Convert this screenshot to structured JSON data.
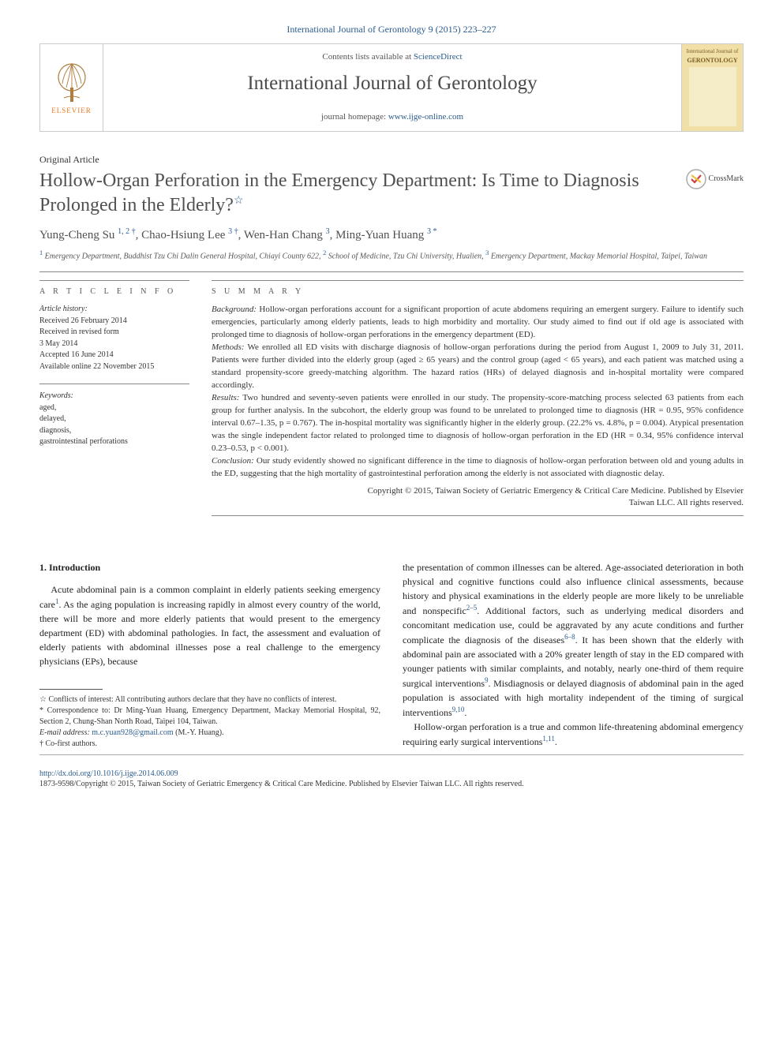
{
  "header": {
    "citation": "International Journal of Gerontology 9 (2015) 223–227",
    "contents_prefix": "Contents lists available at ",
    "contents_link": "ScienceDirect",
    "journal_name": "International Journal of Gerontology",
    "homepage_prefix": "journal homepage: ",
    "homepage_link": "www.ijge-online.com",
    "elsevier_label": "ELSEVIER",
    "cover_line1": "International Journal of",
    "cover_line2": "GERONTOLOGY"
  },
  "article": {
    "type": "Original Article",
    "title": "Hollow-Organ Perforation in the Emergency Department: Is Time to Diagnosis Prolonged in the Elderly?",
    "title_mark": "☆",
    "crossmark_label": "CrossMark",
    "authors_html": "Yung-Cheng Su <sup><a>1</a>, <a>2</a> †</sup>, Chao-Hsiung Lee <sup><a>3</a> †</sup>, Wen-Han Chang <sup><a>3</a></sup>, Ming-Yuan Huang <sup><a>3</a> *</sup>",
    "affiliations_html": "<sup>1</sup> Emergency Department, Buddhist Tzu Chi Dalin General Hospital, Chiayi County 622, <sup>2</sup> School of Medicine, Tzu Chi University, Hualien, <sup>3</sup> Emergency Department, Mackay Memorial Hospital, Taipei, Taiwan"
  },
  "info": {
    "heading": "a r t i c l e  i n f o",
    "history_label": "Article history:",
    "history": [
      "Received 26 February 2014",
      "Received in revised form",
      "3 May 2014",
      "Accepted 16 June 2014",
      "Available online 22 November 2015"
    ],
    "keywords_label": "Keywords:",
    "keywords": [
      "aged,",
      "delayed,",
      "diagnosis,",
      "gastrointestinal perforations"
    ]
  },
  "summary": {
    "heading": "s u m m a r y",
    "background_label": "Background:",
    "background": " Hollow-organ perforations account for a significant proportion of acute abdomens requiring an emergent surgery. Failure to identify such emergencies, particularly among elderly patients, leads to high morbidity and mortality. Our study aimed to find out if old age is associated with prolonged time to diagnosis of hollow-organ perforations in the emergency department (ED).",
    "methods_label": "Methods:",
    "methods": " We enrolled all ED visits with discharge diagnosis of hollow-organ perforations during the period from August 1, 2009 to July 31, 2011. Patients were further divided into the elderly group (aged ≥ 65 years) and the control group (aged < 65 years), and each patient was matched using a standard propensity-score greedy-matching algorithm. The hazard ratios (HRs) of delayed diagnosis and in-hospital mortality were compared accordingly.",
    "results_label": "Results:",
    "results": " Two hundred and seventy-seven patients were enrolled in our study. The propensity-score-matching process selected 63 patients from each group for further analysis. In the subcohort, the elderly group was found to be unrelated to prolonged time to diagnosis (HR = 0.95, 95% confidence interval 0.67–1.35, p = 0.767). The in-hospital mortality was significantly higher in the elderly group. (22.2% vs. 4.8%, p = 0.004). Atypical presentation was the single independent factor related to prolonged time to diagnosis of hollow-organ perforation in the ED (HR = 0.34, 95% confidence interval 0.23–0.53, p < 0.001).",
    "conclusion_label": "Conclusion:",
    "conclusion": " Our study evidently showed no significant difference in the time to diagnosis of hollow-organ perforation between old and young adults in the ED, suggesting that the high mortality of gastrointestinal perforation among the elderly is not associated with diagnostic delay.",
    "copyright1": "Copyright © 2015, Taiwan Society of Geriatric Emergency & Critical Care Medicine. Published by Elsevier",
    "copyright2": "Taiwan LLC. All rights reserved."
  },
  "body": {
    "section_number": "1.",
    "section_title": "Introduction",
    "col1_p1_html": "Acute abdominal pain is a common complaint in elderly patients seeking emergency care<sup>1</sup>. As the aging population is increasing rapidly in almost every country of the world, there will be more and more elderly patients that would present to the emergency department (ED) with abdominal pathologies. In fact, the assessment and evaluation of elderly patients with abdominal illnesses pose a real challenge to the emergency physicians (EPs), because",
    "col2_p1_html": "the presentation of common illnesses can be altered. Age-associated deterioration in both physical and cognitive functions could also influence clinical assessments, because history and physical examinations in the elderly people are more likely to be unreliable and nonspecific<sup>2–5</sup>. Additional factors, such as underlying medical disorders and concomitant medication use, could be aggravated by any acute conditions and further complicate the diagnosis of the diseases<sup>6–8</sup>. It has been shown that the elderly with abdominal pain are associated with a 20% greater length of stay in the ED compared with younger patients with similar complaints, and notably, nearly one-third of them require surgical interventions<sup>9</sup>. Misdiagnosis or delayed diagnosis of abdominal pain in the aged population is associated with high mortality independent of the timing of surgical interventions<sup>9,10</sup>.",
    "col2_p2_html": "Hollow-organ perforation is a true and common life-threatening abdominal emergency requiring early surgical interventions<sup>1,11</sup>."
  },
  "footnotes": {
    "conflict": "☆ Conflicts of interest: All contributing authors declare that they have no conflicts of interest.",
    "correspondence": "* Correspondence to: Dr Ming-Yuan Huang, Emergency Department, Mackay Memorial Hospital, 92, Section 2, Chung-Shan North Road, Taipei 104, Taiwan.",
    "email_label": "E-mail address:",
    "email": "m.c.yuan928@gmail.com",
    "email_who": " (M.-Y. Huang).",
    "cofirst": "† Co-first authors."
  },
  "footer": {
    "doi": "http://dx.doi.org/10.1016/j.ijge.2014.06.009",
    "issn_line": "1873-9598/Copyright © 2015, Taiwan Society of Geriatric Emergency & Critical Care Medicine. Published by Elsevier Taiwan LLC. All rights reserved."
  },
  "colors": {
    "link": "#2a5b8e",
    "elsevier": "#e8781f",
    "text": "#333333",
    "title": "#505050",
    "rule": "#888888",
    "cover_bg": "#f0e0a8"
  }
}
